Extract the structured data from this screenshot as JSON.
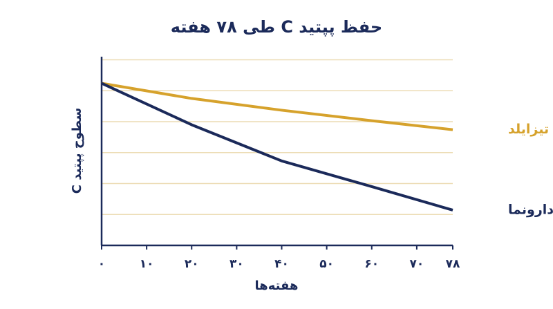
{
  "chart_data": {
    "type": "line",
    "title": "حفظ پپتید C طی ۷۸ هفته",
    "x_label": "هفته‌ها",
    "y_label": "سطوح پپتید C",
    "x": [
      0,
      20,
      40,
      60,
      78
    ],
    "xlim": [
      0,
      78
    ],
    "xticks": [
      {
        "value": 0,
        "label": "۰"
      },
      {
        "value": 10,
        "label": "۱۰"
      },
      {
        "value": 20,
        "label": "۲۰"
      },
      {
        "value": 30,
        "label": "۳۰"
      },
      {
        "value": 40,
        "label": "۴۰"
      },
      {
        "value": 50,
        "label": "۵۰"
      },
      {
        "value": 60,
        "label": "۶۰"
      },
      {
        "value": 70,
        "label": "۷۰"
      },
      {
        "value": 78,
        "label": "۷۸"
      }
    ],
    "ylim": [
      0,
      6.1
    ],
    "y_grid": [
      1,
      2,
      3,
      4,
      5,
      6
    ],
    "grid_color": "#ecdcb4",
    "axis_color": "#1b2a5a",
    "series": [
      {
        "name": "تیزایلد",
        "color": "#d6a22c",
        "values": [
          5.24,
          4.75,
          4.37,
          4.03,
          3.74
        ]
      },
      {
        "name": "دارونما",
        "color": "#1b2a5a",
        "values": [
          5.24,
          3.9,
          2.73,
          1.9,
          1.14
        ]
      }
    ]
  }
}
